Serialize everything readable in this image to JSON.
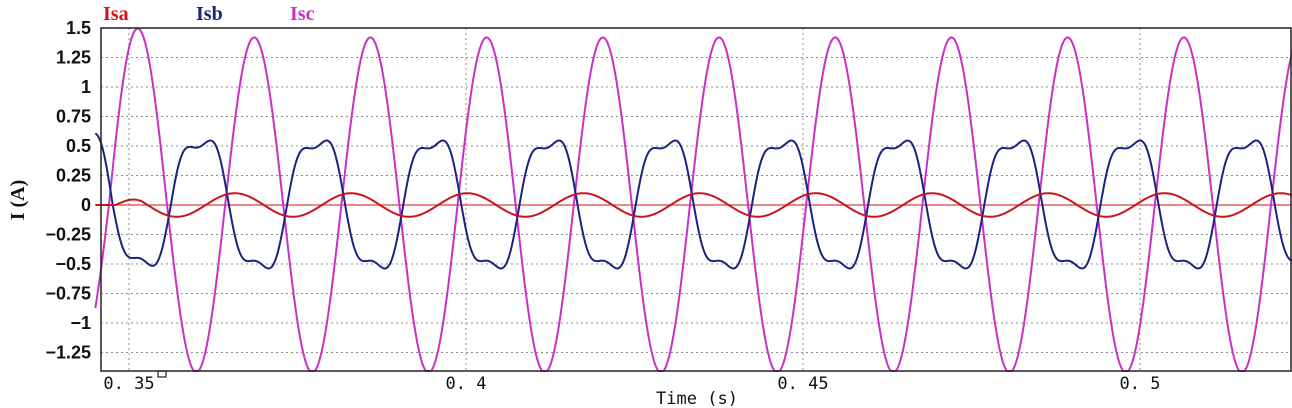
{
  "chart_data": {
    "type": "line",
    "title": "",
    "xlabel": "Time (s)",
    "ylabel": "I (A)",
    "xlim": [
      0.345,
      0.524
    ],
    "ylim": [
      -1.4,
      1.5
    ],
    "x_ticks": [
      0.35,
      0.4,
      0.45,
      0.5
    ],
    "x_tick_labels": [
      "0. 35",
      "0. 4",
      "0. 45",
      "0. 5"
    ],
    "y_ticks": [
      1.5,
      1.25,
      1,
      0.75,
      0.5,
      0.25,
      0,
      -0.25,
      -0.5,
      -0.75,
      -1,
      -1.25
    ],
    "y_tick_labels": [
      "1.5",
      "1.25",
      "1",
      "0.75",
      "0.5",
      "0.25",
      "0",
      "−0.25",
      "−0.5",
      "−0.75",
      "−1",
      "−1.25"
    ],
    "grid": true,
    "legend_placement": "top-left",
    "series": [
      {
        "name": "Isa",
        "color": "#c8161d",
        "frequency_hz": 58,
        "amplitude": 0.1,
        "offset": 0,
        "phase_rad": 0.25,
        "note_start": "flat at 0 until t≈0.348 s"
      },
      {
        "name": "Isb",
        "color": "#1a237e",
        "frequency_hz": 58,
        "peak": 0.63,
        "trough": -0.62,
        "phase_rad": 2.1,
        "first_peak": 0.7,
        "first_trough": -0.57
      },
      {
        "name": "Isc",
        "color": "#cc2fc8",
        "frequency_hz": 58,
        "amplitude": 1.42,
        "offset": 0.0,
        "phase_rad": -0.8,
        "first_peak": 1.55,
        "first_trough": -1.3
      }
    ]
  }
}
